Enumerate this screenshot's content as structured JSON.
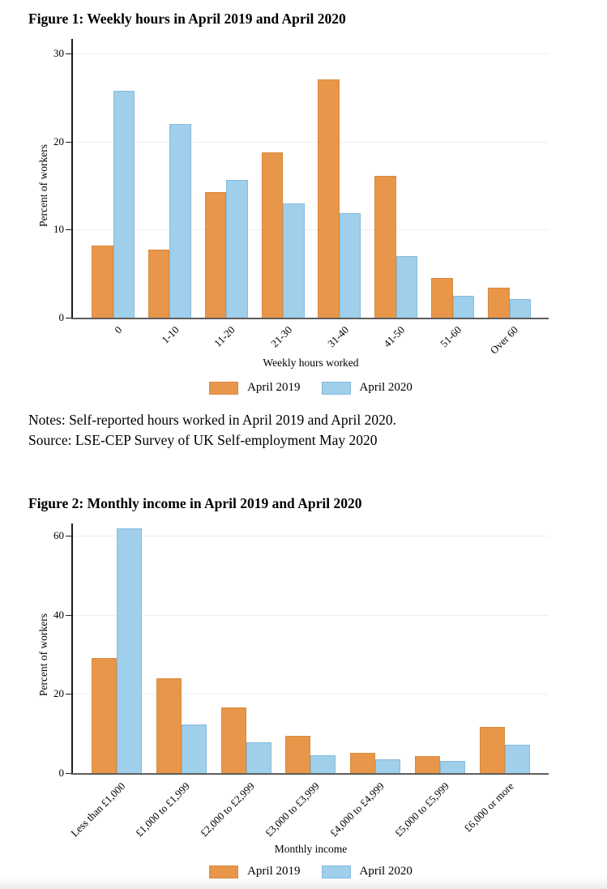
{
  "document": {
    "figure1_title": "Figure 1: Weekly hours in April 2019 and April 2020",
    "figure2_title": "Figure 2: Monthly income in April 2019 and April 2020",
    "notes_line1": "Notes: Self-reported hours worked in April 2019 and April 2020.",
    "notes_line2": "Source: LSE-CEP Survey of UK Self-employment May 2020"
  },
  "colors": {
    "april2019_fill": "#e8964a",
    "april2019_border": "#d88a3e",
    "april2020_fill": "#9fcfeb",
    "april2020_border": "#86badb",
    "gridline": "#efefef",
    "x_axis": "#5e5e5e",
    "y_axis": "#1c1c1c"
  },
  "chart_data": [
    {
      "id": "weekly-hours",
      "type": "bar",
      "title": "Figure 1: Weekly hours in April 2019 and April 2020",
      "categories": [
        "0",
        "1-10",
        "11-20",
        "21-30",
        "31-40",
        "41-50",
        "51-60",
        "Over 60"
      ],
      "series": [
        {
          "name": "April 2019",
          "color": "#e8964a",
          "border_color": "#d88a3e",
          "values": [
            8.2,
            7.7,
            14.3,
            18.8,
            27.1,
            16.1,
            4.5,
            3.4
          ]
        },
        {
          "name": "April 2020",
          "color": "#9fcfeb",
          "border_color": "#86badb",
          "values": [
            25.8,
            22.0,
            15.6,
            13.0,
            11.9,
            7.0,
            2.5,
            2.1
          ]
        }
      ],
      "xlabel": "Weekly hours worked",
      "ylabel": "Percent of workers",
      "ylim": [
        0,
        31
      ],
      "yticks": [
        0,
        10,
        20,
        30
      ],
      "grid": true,
      "legend_position": "bottom",
      "xtick_angle": 45
    },
    {
      "id": "monthly-income",
      "type": "bar",
      "title": "Figure 2: Monthly income in April 2019 and April 2020",
      "categories": [
        "Less than £1,000",
        "£1,000 to £1,999",
        "£2,000 to £2,999",
        "£3,000 to £3,999",
        "£4,000 to £4,999",
        "£5,000 to £5,999",
        "£6,000 or more"
      ],
      "series": [
        {
          "name": "April 2019",
          "color": "#e8964a",
          "border_color": "#d88a3e",
          "values": [
            29.0,
            24.0,
            16.5,
            9.4,
            5.1,
            4.2,
            11.7
          ]
        },
        {
          "name": "April 2020",
          "color": "#9fcfeb",
          "border_color": "#86badb",
          "values": [
            61.8,
            12.2,
            7.8,
            4.5,
            3.4,
            3.1,
            7.1
          ]
        }
      ],
      "xlabel": "Monthly income",
      "ylabel": "Percent of workers",
      "ylim": [
        0,
        64
      ],
      "yticks": [
        0,
        20,
        40,
        60
      ],
      "grid": true,
      "legend_position": "bottom",
      "xtick_angle": 45
    }
  ]
}
